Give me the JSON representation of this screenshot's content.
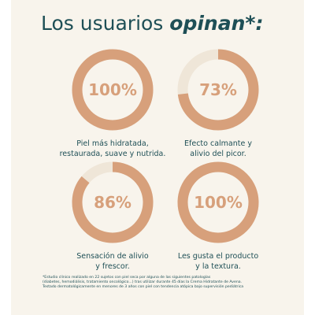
{
  "title": {
    "plain": "Los usuarios ",
    "emphasis": "opinan*:"
  },
  "colors": {
    "background": "#f8f4ec",
    "accent": "#d7a07b",
    "track": "#efe6d8",
    "text": "#1e4f56"
  },
  "stats": [
    {
      "value": 100,
      "label": "100%",
      "caption_line1": "Piel más hidratada,",
      "caption_line2": "restaurada, suave y nutrida."
    },
    {
      "value": 73,
      "label": "73%",
      "caption_line1": "Efecto calmante y",
      "caption_line2": "alivio del picor."
    },
    {
      "value": 86,
      "label": "86%",
      "caption_line1": "Sensación de alivio",
      "caption_line2": "y frescor."
    },
    {
      "value": 100,
      "label": "100%",
      "caption_line1": "Les gusta el producto",
      "caption_line2": "y la textura."
    }
  ],
  "footnote": {
    "line1": "*Estudio clínico realizado en 22 sujetos con piel seca por alguna de las siguientes patologías",
    "line2": "(diabetes, hemodiálisis, tratamiento oncológico...) tras utilizar durante 45 días la Crema Hidratante de Avena.",
    "line3": "Testado dermatológicamente en menores de 3 años con piel con tendencia atópica bajo supervisión pediátrica"
  }
}
